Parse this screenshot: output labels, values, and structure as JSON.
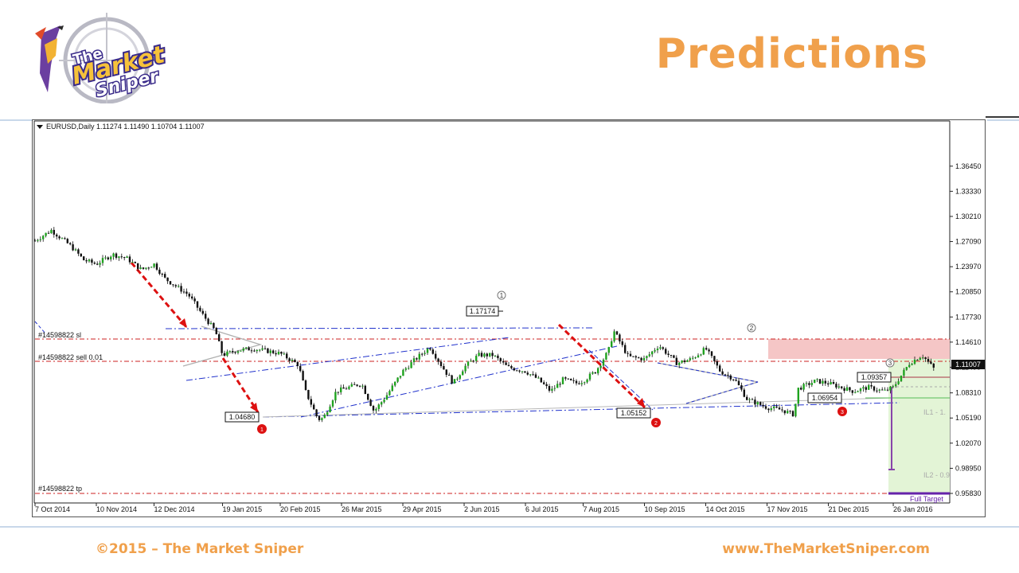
{
  "header": {
    "title": "Predictions",
    "logo_text_line1": "The",
    "logo_text_line2": "Market",
    "logo_text_line3": "Sniper"
  },
  "footer": {
    "copyright": "©2015 – The Market Sniper",
    "website": "www.TheMarketSniper.com"
  },
  "colors": {
    "accent": "#f0a04b",
    "bull_candle": "#1fa31f",
    "bear_candle": "#111111",
    "trend_line": "#2233cc",
    "order_line": "#cc2222",
    "target_zone": "#e3f4d6",
    "stop_zone": "#f5c6c6"
  },
  "chart_data": {
    "type": "line",
    "header": "EURUSD,Daily  1.11274 1.11490 1.10704 1.11007",
    "symbol": "EURUSD",
    "timeframe": "Daily",
    "ohlc": {
      "open": 1.11274,
      "high": 1.1149,
      "low": 1.10704,
      "close": 1.11007
    },
    "current_price_label": "1.11007",
    "ylim": [
      0.9583,
      1.3949
    ],
    "y_ticks": [
      "1.36450",
      "1.33330",
      "1.30210",
      "1.27090",
      "1.23970",
      "1.20850",
      "1.17730",
      "1.14610",
      "1.11490",
      "1.08310",
      "1.05190",
      "1.02070",
      "0.98950",
      "0.95830"
    ],
    "x_ticks": [
      "7 Oct 2014",
      "10 Nov 2014",
      "12 Dec 2014",
      "19 Jan 2015",
      "20 Feb 2015",
      "26 Mar 2015",
      "29 Apr 2015",
      "2 Jun 2015",
      "6 Jul 2015",
      "7 Aug 2015",
      "10 Sep 2015",
      "14 Oct 2015",
      "17 Nov 2015",
      "21 Dec 2015",
      "26 Jan 2016"
    ],
    "series": [
      {
        "values": [
          [
            "2014-10-07",
            1.272
          ],
          [
            "2014-10-16",
            1.285
          ],
          [
            "2014-10-27",
            1.265
          ],
          [
            "2014-11-03",
            1.248
          ],
          [
            "2014-11-10",
            1.243
          ],
          [
            "2014-11-19",
            1.255
          ],
          [
            "2014-11-27",
            1.25
          ],
          [
            "2014-12-05",
            1.236
          ],
          [
            "2014-12-12",
            1.243
          ],
          [
            "2014-12-18",
            1.225
          ],
          [
            "2014-12-31",
            1.205
          ],
          [
            "2015-01-08",
            1.18
          ],
          [
            "2015-01-15",
            1.16
          ],
          [
            "2015-01-19",
            1.13
          ],
          [
            "2015-01-27",
            1.136
          ],
          [
            "2015-02-05",
            1.138
          ],
          [
            "2015-02-13",
            1.135
          ],
          [
            "2015-02-20",
            1.132
          ],
          [
            "2015-03-02",
            1.118
          ],
          [
            "2015-03-06",
            1.085
          ],
          [
            "2015-03-13",
            1.05
          ],
          [
            "2015-03-16",
            1.052
          ],
          [
            "2015-03-23",
            1.085
          ],
          [
            "2015-03-30",
            1.09
          ],
          [
            "2015-04-06",
            1.095
          ],
          [
            "2015-04-13",
            1.06
          ],
          [
            "2015-04-20",
            1.08
          ],
          [
            "2015-04-29",
            1.11
          ],
          [
            "2015-05-06",
            1.125
          ],
          [
            "2015-05-14",
            1.14
          ],
          [
            "2015-05-21",
            1.115
          ],
          [
            "2015-05-27",
            1.095
          ],
          [
            "2015-06-02",
            1.115
          ],
          [
            "2015-06-10",
            1.13
          ],
          [
            "2015-06-18",
            1.13
          ],
          [
            "2015-06-26",
            1.115
          ],
          [
            "2015-07-06",
            1.11
          ],
          [
            "2015-07-13",
            1.1
          ],
          [
            "2015-07-20",
            1.085
          ],
          [
            "2015-07-27",
            1.1
          ],
          [
            "2015-08-03",
            1.095
          ],
          [
            "2015-08-07",
            1.098
          ],
          [
            "2015-08-14",
            1.11
          ],
          [
            "2015-08-21",
            1.135
          ],
          [
            "2015-08-24",
            1.16
          ],
          [
            "2015-09-01",
            1.128
          ],
          [
            "2015-09-10",
            1.125
          ],
          [
            "2015-09-18",
            1.142
          ],
          [
            "2015-09-28",
            1.12
          ],
          [
            "2015-10-06",
            1.125
          ],
          [
            "2015-10-14",
            1.138
          ],
          [
            "2015-10-22",
            1.11
          ],
          [
            "2015-10-30",
            1.1
          ],
          [
            "2015-11-06",
            1.075
          ],
          [
            "2015-11-17",
            1.065
          ],
          [
            "2015-11-25",
            1.062
          ],
          [
            "2015-12-02",
            1.056
          ],
          [
            "2015-12-04",
            1.088
          ],
          [
            "2015-12-14",
            1.098
          ],
          [
            "2015-12-21",
            1.095
          ],
          [
            "2016-01-04",
            1.085
          ],
          [
            "2016-01-12",
            1.09
          ],
          [
            "2016-01-21",
            1.085
          ],
          [
            "2016-01-26",
            1.09
          ],
          [
            "2016-02-04",
            1.12
          ],
          [
            "2016-02-11",
            1.13
          ],
          [
            "2016-02-18",
            1.112
          ]
        ]
      }
    ],
    "annotations": {
      "price_labels": [
        "1.17174",
        "1.04680",
        "1.05152",
        "1.09357",
        "1.06954"
      ],
      "order_labels": [
        "#14598822 sl",
        "#14598822 sell 0.01",
        "#14598822 tp"
      ],
      "order_levels": {
        "sl": 1.1362,
        "sell": 1.1128,
        "tp": 0.9583
      },
      "wave_markers": [
        "1",
        "2",
        "3"
      ],
      "red_markers": [
        "1",
        "2",
        "3"
      ],
      "target_labels": [
        "IL1 - 1.",
        "IL2 - 0.9",
        "Full Target"
      ]
    },
    "grid": false,
    "legend": "none"
  }
}
